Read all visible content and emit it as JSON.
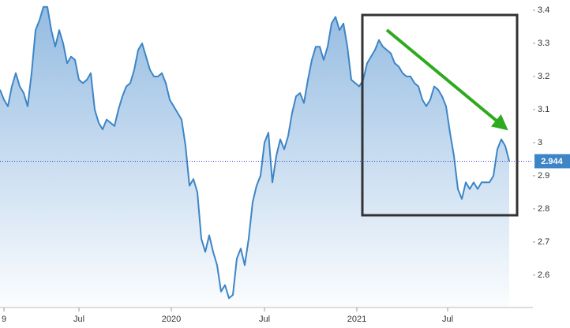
{
  "chart_data": {
    "type": "area",
    "values": [
      3.16,
      3.13,
      3.11,
      3.17,
      3.21,
      3.17,
      3.15,
      3.11,
      3.21,
      3.34,
      3.37,
      3.41,
      3.41,
      3.34,
      3.29,
      3.34,
      3.3,
      3.24,
      3.26,
      3.25,
      3.19,
      3.18,
      3.19,
      3.21,
      3.1,
      3.06,
      3.04,
      3.07,
      3.06,
      3.05,
      3.1,
      3.14,
      3.17,
      3.18,
      3.22,
      3.28,
      3.3,
      3.26,
      3.22,
      3.2,
      3.2,
      3.21,
      3.18,
      3.13,
      3.11,
      3.09,
      3.07,
      2.99,
      2.87,
      2.89,
      2.85,
      2.71,
      2.67,
      2.72,
      2.67,
      2.63,
      2.55,
      2.57,
      2.53,
      2.54,
      2.65,
      2.68,
      2.63,
      2.71,
      2.82,
      2.87,
      2.9,
      3.0,
      3.03,
      2.88,
      2.96,
      3.01,
      2.98,
      3.02,
      3.09,
      3.14,
      3.15,
      3.12,
      3.19,
      3.25,
      3.29,
      3.29,
      3.25,
      3.29,
      3.36,
      3.38,
      3.34,
      3.36,
      3.29,
      3.19,
      3.18,
      3.17,
      3.19,
      3.24,
      3.26,
      3.28,
      3.31,
      3.29,
      3.28,
      3.27,
      3.24,
      3.23,
      3.21,
      3.2,
      3.2,
      3.18,
      3.17,
      3.13,
      3.11,
      3.13,
      3.17,
      3.16,
      3.14,
      3.11,
      3.03,
      2.96,
      2.86,
      2.83,
      2.88,
      2.86,
      2.88,
      2.86,
      2.88,
      2.88,
      2.88,
      2.9,
      2.98,
      3.01,
      2.99,
      2.944
    ],
    "color": "#3d85c6",
    "xlim": [
      0,
      135
    ],
    "xticks": [
      {
        "value": 1,
        "label": "9"
      },
      {
        "value": 20,
        "label": "Jul"
      },
      {
        "value": 43.4,
        "label": "2020"
      },
      {
        "value": 67,
        "label": "Jul"
      },
      {
        "value": 90.4,
        "label": "2021"
      },
      {
        "value": 113.4,
        "label": "Jul"
      }
    ],
    "ylim": [
      2.502,
      3.431
    ],
    "yticks": [
      2.6,
      2.7,
      2.8,
      2.9,
      3,
      3.1,
      3.2,
      3.3,
      3.4
    ],
    "grid": false
  }
}
